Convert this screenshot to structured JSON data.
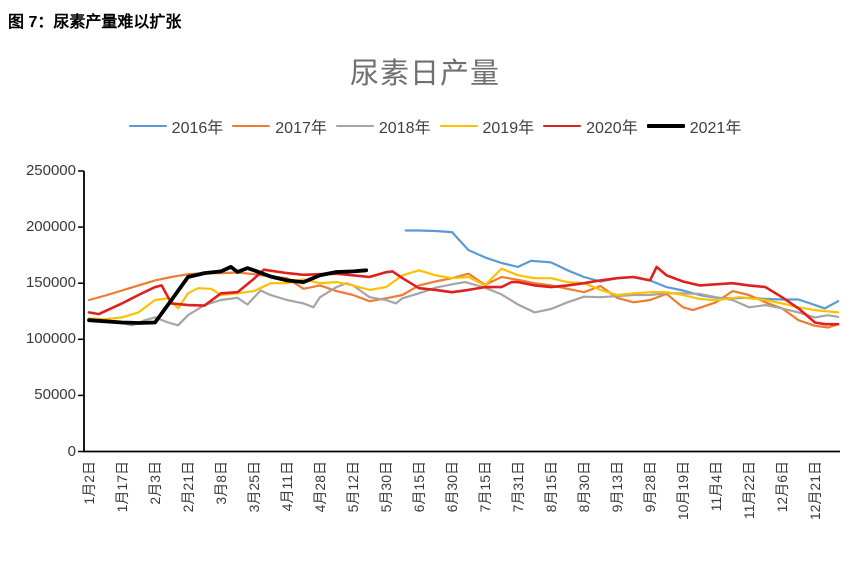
{
  "figure_caption": "图 7：尿素产量难以扩张",
  "chart_data": {
    "type": "line",
    "title": "尿素日产量",
    "grid": false,
    "legend_position": "top",
    "ylim": [
      0,
      250000
    ],
    "y_ticks": [
      0,
      50000,
      100000,
      150000,
      200000,
      250000
    ],
    "x_unit": "label_index",
    "x_tick_labels": [
      "1月2日",
      "1月17日",
      "2月3日",
      "2月21日",
      "3月8日",
      "3月25日",
      "4月11日",
      "4月28日",
      "5月12日",
      "5月30日",
      "6月15日",
      "6月30日",
      "7月15日",
      "7月31日",
      "8月15日",
      "8月30日",
      "9月13日",
      "9月28日",
      "10月19日",
      "11月4日",
      "11月22日",
      "12月6日",
      "12月21日"
    ],
    "series": [
      {
        "name": "2016年",
        "color": "#5B9BD5",
        "stroke_width": 2.2,
        "points": [
          [
            9.6,
            197000
          ],
          [
            10,
            197000
          ],
          [
            10.5,
            196500
          ],
          [
            11,
            195500
          ],
          [
            11.5,
            179500
          ],
          [
            12,
            173000
          ],
          [
            12.5,
            168000
          ],
          [
            13,
            164500
          ],
          [
            13.4,
            170000
          ],
          [
            14,
            168500
          ],
          [
            14.5,
            161500
          ],
          [
            15,
            155500
          ],
          [
            15.5,
            151500
          ],
          [
            16,
            154500
          ],
          [
            16.5,
            155500
          ],
          [
            17,
            152500
          ],
          [
            17.5,
            146500
          ],
          [
            18,
            143500
          ],
          [
            18.5,
            139500
          ],
          [
            19,
            137000
          ],
          [
            19.5,
            136500
          ],
          [
            20,
            137000
          ],
          [
            20.5,
            136000
          ],
          [
            21,
            135500
          ],
          [
            21.5,
            135500
          ],
          [
            22,
            130500
          ],
          [
            22.3,
            127500
          ],
          [
            22.7,
            134000
          ]
        ]
      },
      {
        "name": "2017年",
        "color": "#ED7D31",
        "stroke_width": 2.2,
        "points": [
          [
            0,
            135000
          ],
          [
            0.5,
            139000
          ],
          [
            1,
            143500
          ],
          [
            1.5,
            148000
          ],
          [
            2,
            152500
          ],
          [
            2.5,
            155500
          ],
          [
            3,
            158000
          ],
          [
            3.5,
            159000
          ],
          [
            4,
            159000
          ],
          [
            4.5,
            159500
          ],
          [
            5,
            158000
          ],
          [
            5.5,
            156000
          ],
          [
            6,
            154500
          ],
          [
            6.5,
            145000
          ],
          [
            7,
            148000
          ],
          [
            7.5,
            143000
          ],
          [
            8,
            139500
          ],
          [
            8.5,
            134000
          ],
          [
            9,
            136500
          ],
          [
            9.5,
            139500
          ],
          [
            10,
            148000
          ],
          [
            10.5,
            151500
          ],
          [
            11,
            154500
          ],
          [
            11.5,
            158500
          ],
          [
            12,
            148500
          ],
          [
            12.5,
            155500
          ],
          [
            13,
            153000
          ],
          [
            13.5,
            150000
          ],
          [
            14,
            148000
          ],
          [
            14.5,
            145000
          ],
          [
            15,
            142000
          ],
          [
            15.5,
            147500
          ],
          [
            16,
            137000
          ],
          [
            16.5,
            133000
          ],
          [
            17,
            135000
          ],
          [
            17.5,
            140500
          ],
          [
            18,
            128500
          ],
          [
            18.3,
            126000
          ],
          [
            19,
            133000
          ],
          [
            19.5,
            143000
          ],
          [
            20,
            139500
          ],
          [
            20.5,
            133000
          ],
          [
            21,
            127500
          ],
          [
            21.5,
            117000
          ],
          [
            22,
            112000
          ],
          [
            22.4,
            110500
          ],
          [
            22.7,
            113500
          ]
        ]
      },
      {
        "name": "2018年",
        "color": "#A5A5A5",
        "stroke_width": 2.2,
        "points": [
          [
            0,
            117500
          ],
          [
            0.5,
            116000
          ],
          [
            1,
            114500
          ],
          [
            1.3,
            112500
          ],
          [
            1.7,
            117000
          ],
          [
            2,
            119500
          ],
          [
            2.4,
            115000
          ],
          [
            2.7,
            112500
          ],
          [
            3,
            121500
          ],
          [
            3.5,
            130500
          ],
          [
            4,
            135000
          ],
          [
            4.5,
            137000
          ],
          [
            4.8,
            131000
          ],
          [
            5.2,
            143500
          ],
          [
            5.5,
            139500
          ],
          [
            6,
            135000
          ],
          [
            6.5,
            132000
          ],
          [
            6.8,
            128500
          ],
          [
            7,
            137500
          ],
          [
            7.5,
            146500
          ],
          [
            7.8,
            150000
          ],
          [
            8,
            148000
          ],
          [
            8.5,
            137500
          ],
          [
            9,
            135000
          ],
          [
            9.3,
            132000
          ],
          [
            9.5,
            136500
          ],
          [
            10,
            141000
          ],
          [
            10.5,
            146000
          ],
          [
            11,
            149000
          ],
          [
            11.4,
            151000
          ],
          [
            12,
            146000
          ],
          [
            12.5,
            140000
          ],
          [
            13,
            131000
          ],
          [
            13.5,
            124000
          ],
          [
            14,
            127000
          ],
          [
            14.5,
            133000
          ],
          [
            15,
            138000
          ],
          [
            15.5,
            137500
          ],
          [
            16,
            138500
          ],
          [
            16.5,
            139500
          ],
          [
            17,
            139500
          ],
          [
            17.5,
            141000
          ],
          [
            18,
            141000
          ],
          [
            18.5,
            140500
          ],
          [
            19,
            137500
          ],
          [
            19.5,
            135000
          ],
          [
            20,
            128500
          ],
          [
            20.5,
            130500
          ],
          [
            21,
            127500
          ],
          [
            21.5,
            124000
          ],
          [
            22,
            119500
          ],
          [
            22.4,
            121500
          ],
          [
            22.7,
            120000
          ]
        ]
      },
      {
        "name": "2019年",
        "color": "#FFC000",
        "stroke_width": 2.2,
        "points": [
          [
            0,
            118500
          ],
          [
            0.5,
            118000
          ],
          [
            1,
            119500
          ],
          [
            1.5,
            124000
          ],
          [
            2,
            135000
          ],
          [
            2.4,
            136500
          ],
          [
            2.7,
            127500
          ],
          [
            3,
            141000
          ],
          [
            3.3,
            145500
          ],
          [
            3.7,
            145000
          ],
          [
            4,
            139500
          ],
          [
            4.5,
            141000
          ],
          [
            5,
            143000
          ],
          [
            5.5,
            150000
          ],
          [
            6,
            150000
          ],
          [
            6.5,
            153500
          ],
          [
            7,
            150000
          ],
          [
            7.5,
            151000
          ],
          [
            8,
            148000
          ],
          [
            8.5,
            144000
          ],
          [
            9,
            146500
          ],
          [
            9.5,
            157000
          ],
          [
            10,
            161500
          ],
          [
            10.5,
            157000
          ],
          [
            11,
            154500
          ],
          [
            11.5,
            155500
          ],
          [
            12,
            148000
          ],
          [
            12.5,
            163000
          ],
          [
            13,
            157000
          ],
          [
            13.5,
            154500
          ],
          [
            14,
            154500
          ],
          [
            14.5,
            151000
          ],
          [
            15,
            150000
          ],
          [
            15.5,
            144000
          ],
          [
            16,
            139500
          ],
          [
            16.5,
            141000
          ],
          [
            17,
            142000
          ],
          [
            17.5,
            142000
          ],
          [
            18,
            139500
          ],
          [
            18.5,
            136000
          ],
          [
            19,
            134800
          ],
          [
            19.7,
            137500
          ],
          [
            20.5,
            135000
          ],
          [
            21,
            132000
          ],
          [
            21.5,
            128500
          ],
          [
            22,
            126000
          ],
          [
            22.7,
            124000
          ]
        ]
      },
      {
        "name": "2020年",
        "color": "#DF2020",
        "stroke_width": 2.6,
        "points": [
          [
            0,
            124000
          ],
          [
            0.3,
            122500
          ],
          [
            0.7,
            128000
          ],
          [
            1,
            132000
          ],
          [
            1.5,
            139500
          ],
          [
            2,
            146500
          ],
          [
            2.2,
            148000
          ],
          [
            2.5,
            132000
          ],
          [
            3,
            130500
          ],
          [
            3.5,
            130000
          ],
          [
            4,
            141000
          ],
          [
            4.5,
            142000
          ],
          [
            5,
            154000
          ],
          [
            5.3,
            162000
          ],
          [
            6,
            159000
          ],
          [
            6.5,
            157500
          ],
          [
            7,
            158000
          ],
          [
            7.5,
            158500
          ],
          [
            8,
            157000
          ],
          [
            8.5,
            155500
          ],
          [
            9,
            159800
          ],
          [
            9.2,
            160500
          ],
          [
            9.5,
            154500
          ],
          [
            10,
            145500
          ],
          [
            10.5,
            144000
          ],
          [
            11,
            142000
          ],
          [
            11.5,
            144000
          ],
          [
            12,
            146500
          ],
          [
            12.5,
            146500
          ],
          [
            12.8,
            151000
          ],
          [
            13,
            151000
          ],
          [
            13.5,
            148000
          ],
          [
            14,
            146500
          ],
          [
            14.5,
            148000
          ],
          [
            15,
            150000
          ],
          [
            15.5,
            152500
          ],
          [
            16,
            154500
          ],
          [
            16.5,
            155500
          ],
          [
            17,
            152500
          ],
          [
            17.2,
            164500
          ],
          [
            17.5,
            157000
          ],
          [
            18,
            151500
          ],
          [
            18.5,
            148000
          ],
          [
            19,
            149000
          ],
          [
            19.5,
            150000
          ],
          [
            20,
            148000
          ],
          [
            20.5,
            146500
          ],
          [
            21,
            137500
          ],
          [
            21.5,
            127500
          ],
          [
            22,
            115000
          ],
          [
            22.3,
            113500
          ],
          [
            22.7,
            113500
          ]
        ]
      },
      {
        "name": "2021年",
        "color": "#000000",
        "stroke_width": 3.8,
        "points": [
          [
            0,
            117000
          ],
          [
            0.5,
            116000
          ],
          [
            1,
            115000
          ],
          [
            1.5,
            114500
          ],
          [
            2,
            115000
          ],
          [
            2.5,
            135000
          ],
          [
            3,
            155500
          ],
          [
            3.5,
            159000
          ],
          [
            4,
            160500
          ],
          [
            4.3,
            164500
          ],
          [
            4.5,
            160000
          ],
          [
            4.8,
            163500
          ],
          [
            5,
            161500
          ],
          [
            5.5,
            156000
          ],
          [
            6,
            152500
          ],
          [
            6.5,
            151000
          ],
          [
            7,
            157000
          ],
          [
            7.5,
            160000
          ],
          [
            8,
            160500
          ],
          [
            8.4,
            161500
          ]
        ]
      }
    ]
  }
}
